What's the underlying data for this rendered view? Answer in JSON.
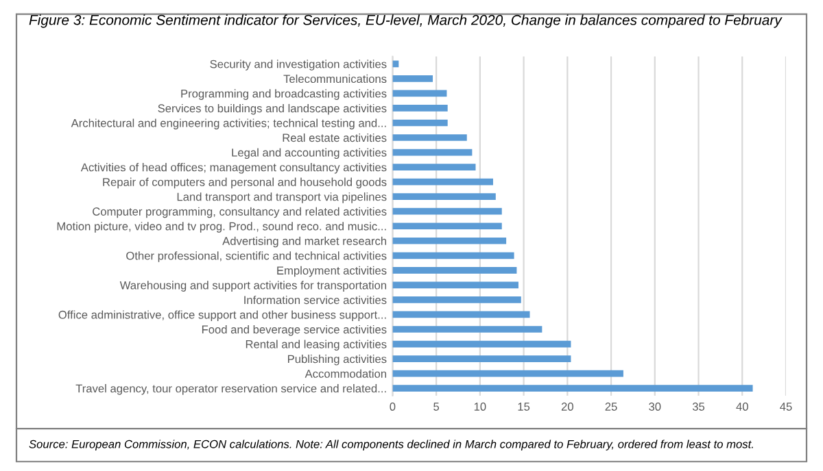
{
  "chart_data": {
    "type": "bar",
    "orientation": "horizontal",
    "title": "Figure 3: Economic Sentiment indicator for Services, EU-level, March 2020, Change in balances compared to February",
    "categories": [
      "Security and investigation activities",
      "Telecommunications",
      "Programming and broadcasting activities",
      "Services to buildings and landscape activities",
      "Architectural and engineering activities; technical testing and...",
      "Real estate activities",
      "Legal and accounting activities",
      "Activities of head offices; management consultancy activities",
      "Repair of computers and personal and household goods",
      "Land transport and transport via pipelines",
      "Computer programming, consultancy and related activities",
      "Motion picture, video and tv prog. Prod., sound reco. and music...",
      "Advertising and market research",
      "Other professional, scientific and technical activities",
      "Employment activities",
      "Warehousing and support activities for transportation",
      "Information service activities",
      "Office administrative, office support and other business support...",
      "Food and beverage service activities",
      "Rental and leasing activities",
      "Publishing activities",
      "Accommodation",
      "Travel agency, tour operator reservation service and related..."
    ],
    "values": [
      0.7,
      4.6,
      6.2,
      6.3,
      6.3,
      8.5,
      9.1,
      9.5,
      11.5,
      11.8,
      12.5,
      12.5,
      13.0,
      13.9,
      14.2,
      14.4,
      14.7,
      15.7,
      17.1,
      20.4,
      20.4,
      26.4,
      41.2
    ],
    "color": "#5b9bd5",
    "xlim": [
      0,
      45
    ],
    "xticks": [
      0,
      5,
      10,
      15,
      20,
      25,
      30,
      35,
      40,
      45
    ],
    "grid": "x",
    "annotations": [
      "Source: European Commission, ECON calculations. Note: All components declined in March compared to February, ordered from least to most."
    ]
  }
}
